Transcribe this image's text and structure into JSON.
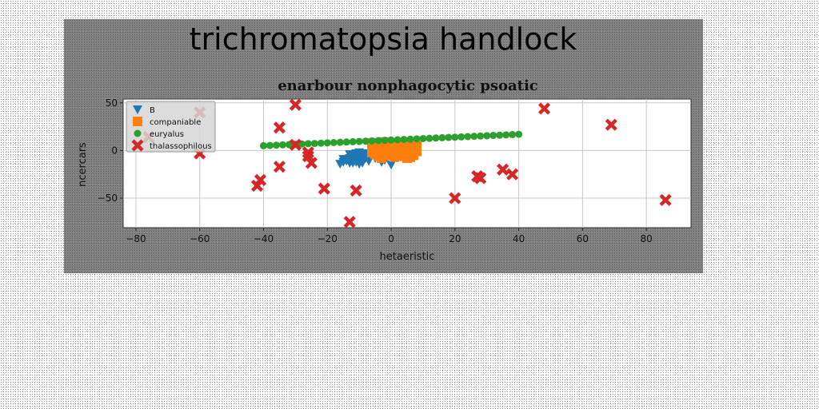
{
  "figure_title": "trichromatopsia handlock",
  "colors": {
    "B": "#1f77b4",
    "companiable": "#ff7f0e",
    "euryalus": "#2ca02c",
    "thalassophilous": "#d62728"
  },
  "chart_data": {
    "type": "scatter",
    "title": "enarbour nonphagocytic psoatic",
    "xlabel": "hetaeristic",
    "ylabel": "ncercars",
    "xlim": [
      -84,
      94
    ],
    "ylim": [
      -81,
      54
    ],
    "xticks": [
      -80,
      -60,
      -40,
      -20,
      0,
      20,
      40,
      60,
      80
    ],
    "yticks": [
      -50,
      0,
      50
    ],
    "grid": true,
    "legend_position": "top-left",
    "series": [
      {
        "name": "B",
        "marker": "triangle-down",
        "color": "#1f77b4",
        "points": [
          [
            -16,
            -14
          ],
          [
            -15,
            -12
          ],
          [
            -14,
            -11
          ],
          [
            -13,
            -13
          ],
          [
            -13,
            -8
          ],
          [
            -12,
            -6
          ],
          [
            -12,
            -10
          ],
          [
            -11,
            -3
          ],
          [
            -11,
            -12
          ],
          [
            -10,
            -2
          ],
          [
            -10,
            -9
          ],
          [
            -9,
            -5
          ],
          [
            -9,
            -13
          ],
          [
            -8,
            -8
          ],
          [
            -8,
            -3
          ],
          [
            -7,
            -11
          ],
          [
            -7,
            -6
          ],
          [
            -14,
            -9
          ],
          [
            -12,
            -13
          ],
          [
            -10,
            -14
          ],
          [
            -9,
            -10
          ],
          [
            -11,
            -6
          ],
          [
            -13,
            -4
          ],
          [
            -6,
            -4
          ],
          [
            -5,
            -8
          ],
          [
            -4,
            -3
          ],
          [
            -3,
            -12
          ],
          [
            -2,
            -10
          ],
          [
            -1,
            -6
          ],
          [
            0,
            -15
          ],
          [
            -15,
            -9
          ],
          [
            -10,
            -4
          ]
        ]
      },
      {
        "name": "companiable",
        "marker": "square",
        "color": "#ff7f0e",
        "points": [
          [
            -6,
            8
          ],
          [
            -5,
            6
          ],
          [
            -4,
            4
          ],
          [
            -3,
            2
          ],
          [
            -2,
            9
          ],
          [
            -1,
            7
          ],
          [
            0,
            5
          ],
          [
            1,
            3
          ],
          [
            2,
            1
          ],
          [
            3,
            8
          ],
          [
            4,
            6
          ],
          [
            5,
            4
          ],
          [
            6,
            2
          ],
          [
            7,
            0
          ],
          [
            8,
            5
          ],
          [
            -6,
            -2
          ],
          [
            -5,
            -4
          ],
          [
            -4,
            -6
          ],
          [
            -3,
            -8
          ],
          [
            -2,
            -1
          ],
          [
            -1,
            -3
          ],
          [
            0,
            -5
          ],
          [
            1,
            -7
          ],
          [
            2,
            -2
          ],
          [
            3,
            -4
          ],
          [
            4,
            -6
          ],
          [
            5,
            -8
          ],
          [
            6,
            -3
          ],
          [
            7,
            -5
          ],
          [
            8,
            -1
          ],
          [
            -6,
            1
          ],
          [
            0,
            0
          ],
          [
            4,
            1
          ],
          [
            -3,
            -3
          ],
          [
            6,
            -7
          ],
          [
            2,
            4
          ]
        ]
      },
      {
        "name": "euryalus",
        "marker": "circle",
        "color": "#2ca02c",
        "points": [
          [
            -40,
            5.0
          ],
          [
            -38,
            5.3
          ],
          [
            -36,
            5.6
          ],
          [
            -34,
            5.9
          ],
          [
            -32,
            6.2
          ],
          [
            -30,
            6.5
          ],
          [
            -28,
            6.8
          ],
          [
            -26,
            7.1
          ],
          [
            -24,
            7.4
          ],
          [
            -22,
            7.7
          ],
          [
            -20,
            8.0
          ],
          [
            -18,
            8.3
          ],
          [
            -16,
            8.6
          ],
          [
            -14,
            8.9
          ],
          [
            -12,
            9.2
          ],
          [
            -10,
            9.5
          ],
          [
            -8,
            9.8
          ],
          [
            -6,
            10.1
          ],
          [
            -4,
            10.4
          ],
          [
            -2,
            10.7
          ],
          [
            0,
            11.0
          ],
          [
            2,
            11.3
          ],
          [
            4,
            11.6
          ],
          [
            6,
            11.9
          ],
          [
            8,
            12.2
          ],
          [
            10,
            12.5
          ],
          [
            12,
            12.8
          ],
          [
            14,
            13.1
          ],
          [
            16,
            13.4
          ],
          [
            18,
            13.7
          ],
          [
            20,
            14.0
          ],
          [
            22,
            14.3
          ],
          [
            24,
            14.6
          ],
          [
            26,
            14.9
          ],
          [
            28,
            15.2
          ],
          [
            30,
            15.5
          ],
          [
            32,
            15.8
          ],
          [
            34,
            16.1
          ],
          [
            36,
            16.4
          ],
          [
            38,
            16.7
          ],
          [
            40,
            17.0
          ]
        ]
      },
      {
        "name": "thalassophilous",
        "marker": "x",
        "color": "#d62728",
        "points": [
          [
            -30,
            48
          ],
          [
            -35,
            24
          ],
          [
            48,
            44
          ],
          [
            69,
            27
          ],
          [
            -30,
            6
          ],
          [
            -26,
            -2
          ],
          [
            -26,
            -6
          ],
          [
            -25,
            -13
          ],
          [
            -35,
            -17
          ],
          [
            -41,
            -31
          ],
          [
            -42,
            -37
          ],
          [
            -21,
            -40
          ],
          [
            -11,
            -42
          ],
          [
            -13,
            -75
          ],
          [
            20,
            -50
          ],
          [
            27,
            -27
          ],
          [
            28,
            -29
          ],
          [
            35,
            -20
          ],
          [
            38,
            -25
          ],
          [
            86,
            -52
          ],
          [
            -60,
            -3
          ],
          [
            -60,
            40
          ],
          [
            -76,
            14
          ]
        ]
      }
    ]
  }
}
